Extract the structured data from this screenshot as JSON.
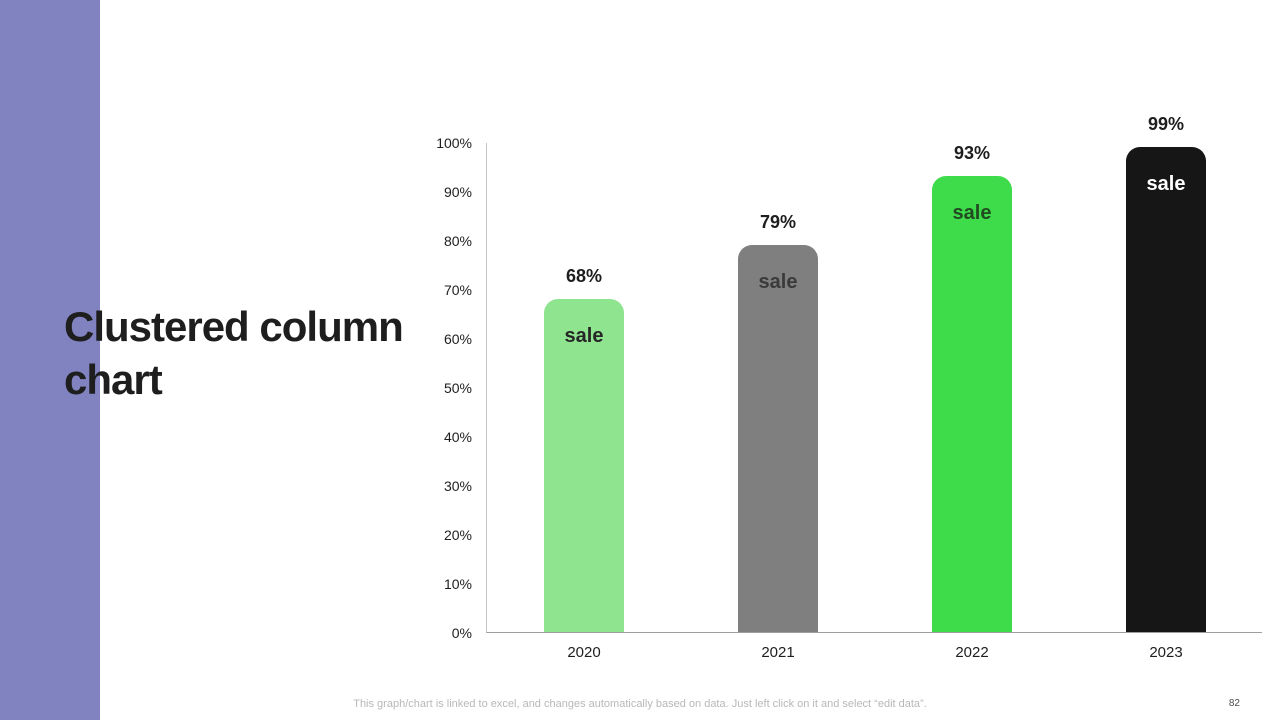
{
  "slide": {
    "title": "Clustered column chart",
    "footer": "This graph/chart is linked to excel, and changes automatically based on data. Just left click on it and select “edit data”.",
    "page_number": "82"
  },
  "chart_data": {
    "type": "bar",
    "title": "Clustered column chart",
    "categories": [
      "2020",
      "2021",
      "2022",
      "2023"
    ],
    "series": [
      {
        "name": "sale",
        "values": [
          68,
          79,
          93,
          99
        ],
        "data_labels": [
          "68%",
          "79%",
          "93%",
          "99%"
        ],
        "bar_colors": [
          "#8fe48f",
          "#7f7f7f",
          "#3edc4b",
          "#161616"
        ],
        "series_label_colors": [
          "#262626",
          "#3a3a3a",
          "#214a21",
          "#ffffff"
        ]
      }
    ],
    "ylim": [
      0,
      100
    ],
    "y_ticks": [
      "100%",
      "90%",
      "80%",
      "70%",
      "60%",
      "50%",
      "40%",
      "30%",
      "20%",
      "10%",
      "0%"
    ],
    "grid": false,
    "legend": "none"
  },
  "colors": {
    "accent_bar": "#8183c1",
    "y_axis_line": "#c6c6c6",
    "x_axis_line": "#9e9e9e",
    "title_text": "#1e1e1e",
    "footer_text": "#b8b8b8"
  }
}
